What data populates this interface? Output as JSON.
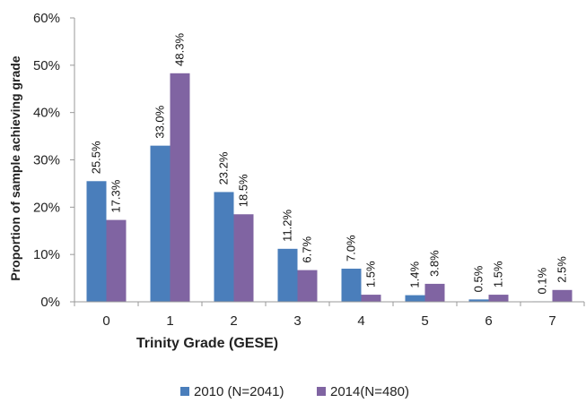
{
  "chart_data": {
    "type": "bar",
    "title": "",
    "xlabel": "Trinity Grade (GESE)",
    "ylabel": "Proportion of sample achieving grade",
    "categories": [
      "0",
      "1",
      "2",
      "3",
      "4",
      "5",
      "6",
      "7"
    ],
    "ylim": [
      0,
      60
    ],
    "yticks": [
      "0%",
      "10%",
      "20%",
      "30%",
      "40%",
      "50%",
      "60%"
    ],
    "grid": false,
    "legend_position": "bottom",
    "series": [
      {
        "name": "2010 (N=2041)",
        "color": "#4a7ebb",
        "values": [
          25.5,
          33.0,
          23.2,
          11.2,
          7.0,
          1.4,
          0.5,
          0.1
        ],
        "labels": [
          "25.5%",
          "33.0%",
          "23.2%",
          "11.2%",
          "7.0%",
          "1.4%",
          "0.5%",
          "0.1%"
        ]
      },
      {
        "name": "2014(N=480)",
        "color": "#8064a2",
        "values": [
          17.3,
          48.3,
          18.5,
          6.7,
          1.5,
          3.8,
          1.5,
          2.5
        ],
        "labels": [
          "17.3%",
          "48.3%",
          "18.5%",
          "6.7%",
          "1.5%",
          "3.8%",
          "1.5%",
          "2.5%"
        ]
      }
    ]
  }
}
